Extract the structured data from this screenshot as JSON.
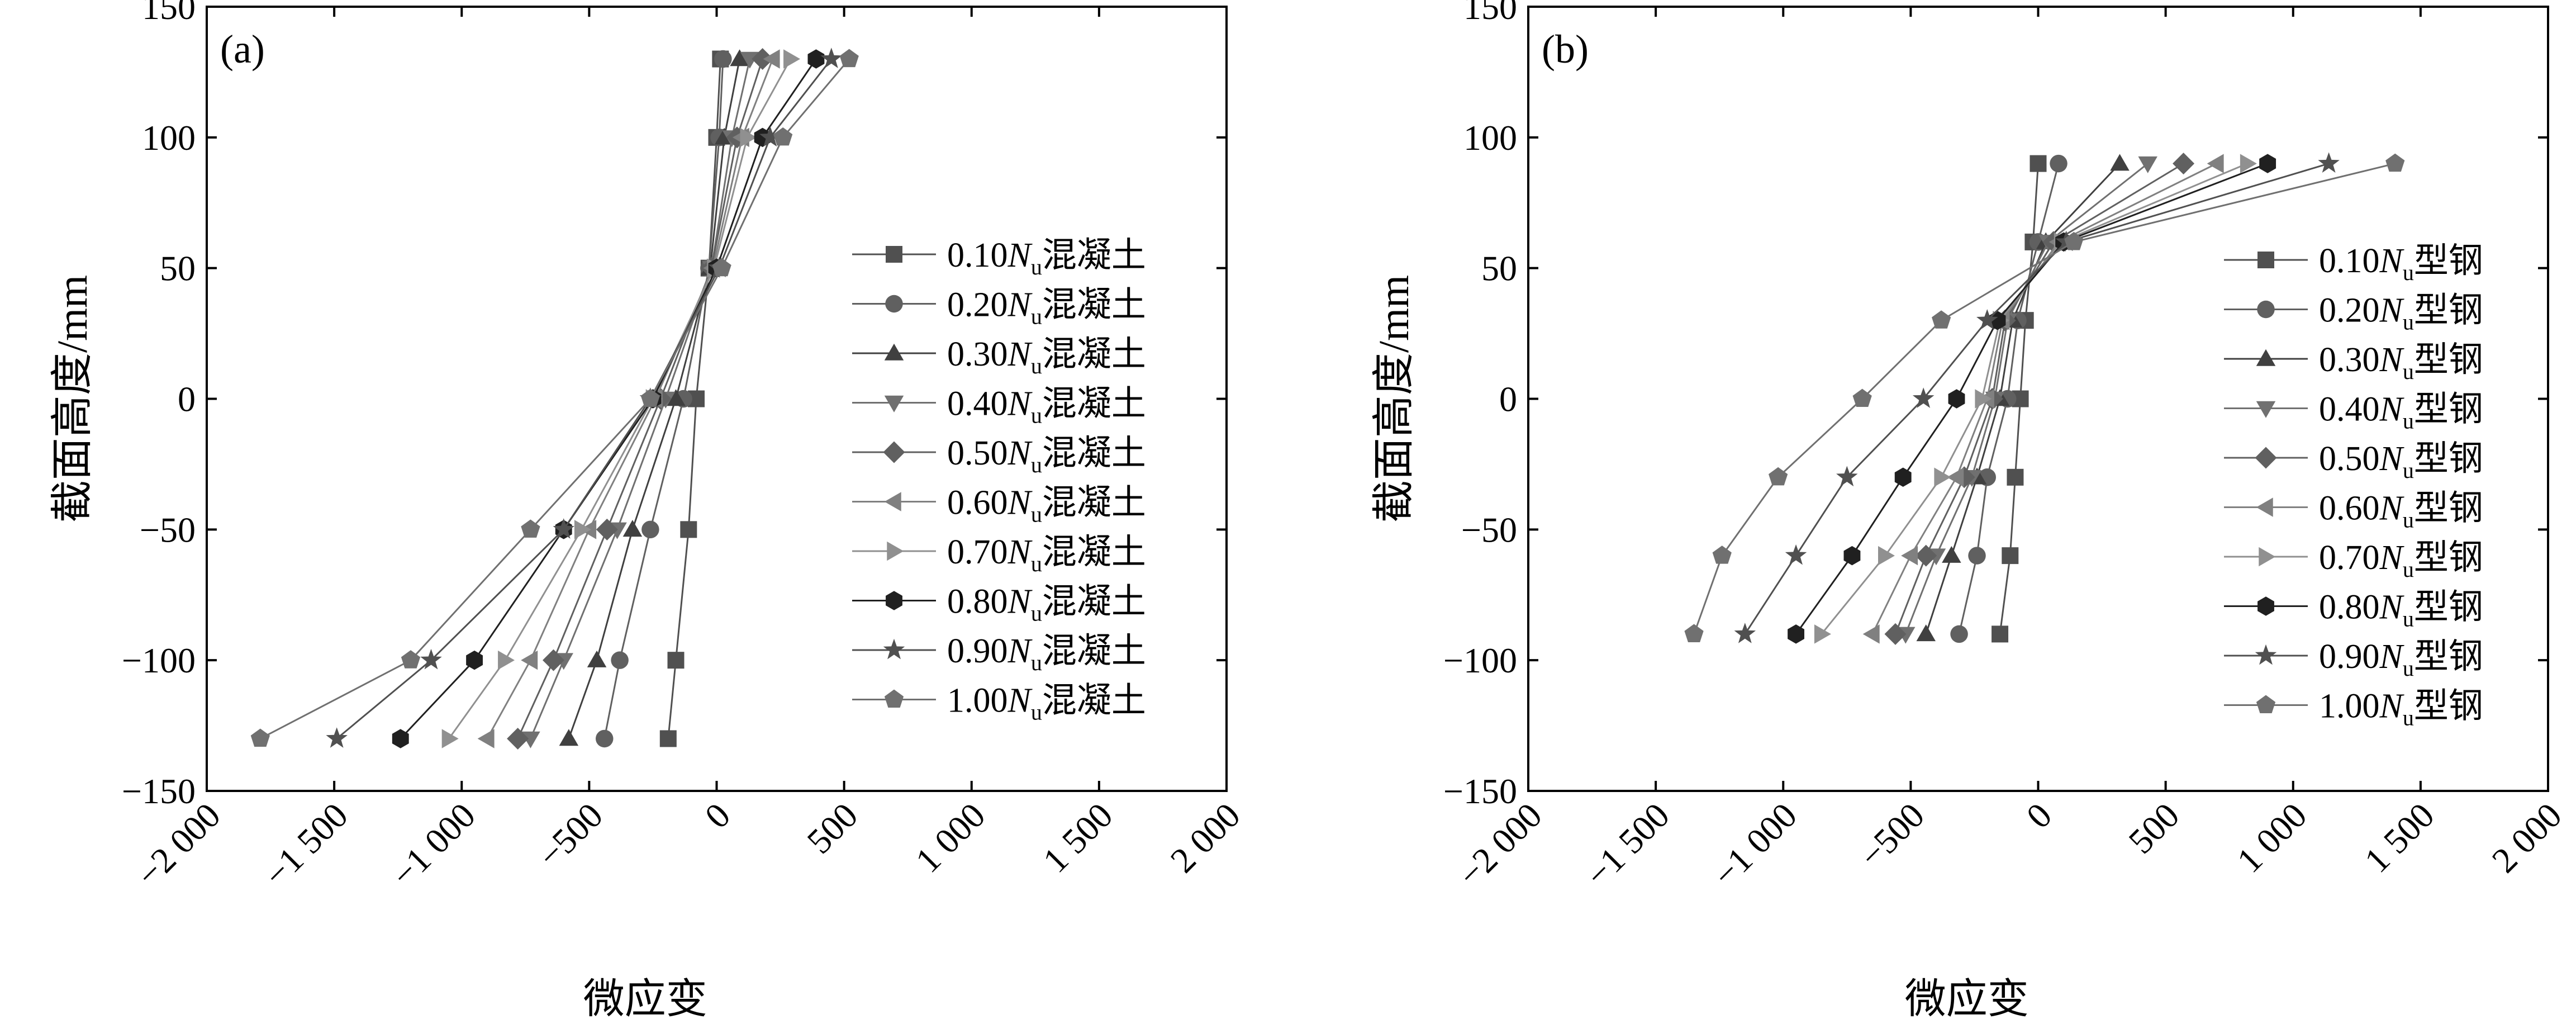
{
  "chart_data": [
    {
      "type": "line",
      "panel_label": "(a)",
      "xlabel": "微应变",
      "ylabel": "截面高度/mm",
      "xlim": [
        -2000,
        2000
      ],
      "ylim": [
        -150,
        150
      ],
      "xticks": [
        -2000,
        -1500,
        -1000,
        -500,
        0,
        500,
        1000,
        1500,
        2000
      ],
      "yticks": [
        -150,
        -100,
        -50,
        0,
        50,
        100,
        150
      ],
      "xtick_labels": [
        "−2 000",
        "−1 500",
        "−1 000",
        "−500",
        "0",
        "500",
        "1 000",
        "1 500",
        "2 000"
      ],
      "ytick_labels": [
        "−150",
        "−100",
        "−50",
        "0",
        "50",
        "100",
        "150"
      ],
      "legend_position": "right",
      "y": [
        130,
        100,
        50,
        0,
        -50,
        -100,
        -130
      ],
      "series": [
        {
          "prefix": "0.10",
          "italic": "N",
          "sub": "u",
          "suffix": "混凝土",
          "marker": "square",
          "color": "#505050",
          "x": [
            15,
            0,
            -30,
            -80,
            -110,
            -160,
            -190
          ]
        },
        {
          "prefix": "0.20",
          "italic": "N",
          "sub": "u",
          "suffix": "混凝土",
          "marker": "circle",
          "color": "#606060",
          "x": [
            25,
            10,
            -30,
            -130,
            -260,
            -380,
            -440
          ]
        },
        {
          "prefix": "0.30",
          "italic": "N",
          "sub": "u",
          "suffix": "混凝土",
          "marker": "triangle-up",
          "color": "#404040",
          "x": [
            90,
            30,
            -25,
            -160,
            -330,
            -470,
            -580
          ]
        },
        {
          "prefix": "0.40",
          "italic": "N",
          "sub": "u",
          "suffix": "混凝土",
          "marker": "triangle-down",
          "color": "#707070",
          "x": [
            130,
            60,
            -20,
            -200,
            -390,
            -600,
            -730
          ]
        },
        {
          "prefix": "0.50",
          "italic": "N",
          "sub": "u",
          "suffix": "混凝土",
          "marker": "diamond",
          "color": "#606060",
          "x": [
            180,
            80,
            -20,
            -220,
            -430,
            -640,
            -780
          ]
        },
        {
          "prefix": "0.60",
          "italic": "N",
          "sub": "u",
          "suffix": "混凝土",
          "marker": "triangle-left",
          "color": "#808080",
          "x": [
            220,
            100,
            -15,
            -240,
            -500,
            -730,
            -900
          ]
        },
        {
          "prefix": "0.70",
          "italic": "N",
          "sub": "u",
          "suffix": "混凝土",
          "marker": "triangle-right",
          "color": "#909090",
          "x": [
            290,
            120,
            -10,
            -250,
            -530,
            -830,
            -1050
          ]
        },
        {
          "prefix": "0.80",
          "italic": "N",
          "sub": "u",
          "suffix": "混凝土",
          "marker": "hexagon",
          "color": "#202020",
          "x": [
            390,
            180,
            0,
            -250,
            -600,
            -950,
            -1240
          ]
        },
        {
          "prefix": "0.90",
          "italic": "N",
          "sub": "u",
          "suffix": "混凝土",
          "marker": "star",
          "color": "#505050",
          "x": [
            450,
            210,
            10,
            -260,
            -600,
            -1120,
            -1490
          ]
        },
        {
          "prefix": "1.00",
          "italic": "N",
          "sub": "u",
          "suffix": "混凝土",
          "marker": "pentagon",
          "color": "#707070",
          "x": [
            520,
            260,
            20,
            -260,
            -730,
            -1200,
            -1790
          ]
        }
      ]
    },
    {
      "type": "line",
      "panel_label": "(b)",
      "xlabel": "微应变",
      "ylabel": "截面高度/mm",
      "xlim": [
        -2000,
        2000
      ],
      "ylim": [
        -150,
        150
      ],
      "xticks": [
        -2000,
        -1500,
        -1000,
        -500,
        0,
        500,
        1000,
        1500,
        2000
      ],
      "yticks": [
        -150,
        -100,
        -50,
        0,
        50,
        100,
        150
      ],
      "xtick_labels": [
        "−2 000",
        "−1 500",
        "−1 000",
        "−500",
        "0",
        "500",
        "1 000",
        "1 500",
        "2 000"
      ],
      "ytick_labels": [
        "−150",
        "−100",
        "−50",
        "0",
        "50",
        "100",
        "150"
      ],
      "legend_position": "right",
      "y": [
        90,
        60,
        30,
        0,
        -30,
        -60,
        -90
      ],
      "series": [
        {
          "prefix": "0.10",
          "italic": "N",
          "sub": "u",
          "suffix": "型钢",
          "marker": "square",
          "color": "#505050",
          "x": [
            0,
            -20,
            -50,
            -70,
            -90,
            -110,
            -150
          ]
        },
        {
          "prefix": "0.20",
          "italic": "N",
          "sub": "u",
          "suffix": "型钢",
          "marker": "circle",
          "color": "#606060",
          "x": [
            80,
            0,
            -80,
            -120,
            -200,
            -240,
            -310
          ]
        },
        {
          "prefix": "0.30",
          "italic": "N",
          "sub": "u",
          "suffix": "型钢",
          "marker": "triangle-up",
          "color": "#404040",
          "x": [
            320,
            30,
            -100,
            -150,
            -240,
            -340,
            -440
          ]
        },
        {
          "prefix": "0.40",
          "italic": "N",
          "sub": "u",
          "suffix": "型钢",
          "marker": "triangle-down",
          "color": "#707070",
          "x": [
            430,
            40,
            -120,
            -170,
            -260,
            -400,
            -520
          ]
        },
        {
          "prefix": "0.50",
          "italic": "N",
          "sub": "u",
          "suffix": "型钢",
          "marker": "diamond",
          "color": "#606060",
          "x": [
            570,
            60,
            -130,
            -180,
            -290,
            -440,
            -560
          ]
        },
        {
          "prefix": "0.60",
          "italic": "N",
          "sub": "u",
          "suffix": "型钢",
          "marker": "triangle-left",
          "color": "#808080",
          "x": [
            700,
            80,
            -140,
            -200,
            -320,
            -500,
            -650
          ]
        },
        {
          "prefix": "0.70",
          "italic": "N",
          "sub": "u",
          "suffix": "型钢",
          "marker": "triangle-right",
          "color": "#909090",
          "x": [
            820,
            90,
            -150,
            -220,
            -380,
            -600,
            -850
          ]
        },
        {
          "prefix": "0.80",
          "italic": "N",
          "sub": "u",
          "suffix": "型钢",
          "marker": "hexagon",
          "color": "#202020",
          "x": [
            900,
            100,
            -160,
            -320,
            -530,
            -730,
            -950
          ]
        },
        {
          "prefix": "0.90",
          "italic": "N",
          "sub": "u",
          "suffix": "型钢",
          "marker": "star",
          "color": "#505050",
          "x": [
            1140,
            110,
            -200,
            -450,
            -750,
            -950,
            -1150
          ]
        },
        {
          "prefix": "1.00",
          "italic": "N",
          "sub": "u",
          "suffix": "型钢",
          "marker": "pentagon",
          "color": "#707070",
          "x": [
            1400,
            140,
            -380,
            -690,
            -1020,
            -1240,
            -1350
          ]
        }
      ]
    }
  ]
}
